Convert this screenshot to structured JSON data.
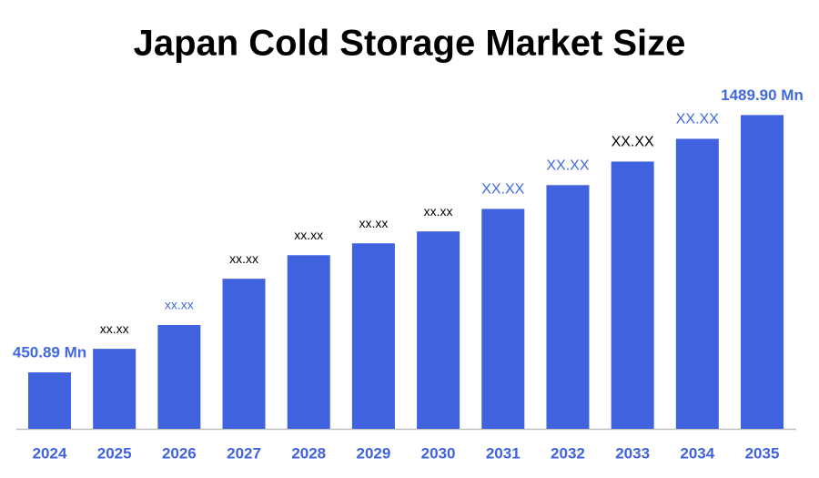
{
  "chart_data": {
    "type": "bar",
    "title": "Japan Cold Storage Market Size",
    "categories": [
      "2024",
      "2025",
      "2026",
      "2027",
      "2028",
      "2029",
      "2030",
      "2031",
      "2032",
      "2033",
      "2034",
      "2035"
    ],
    "values": [
      450.89,
      546,
      642,
      829,
      924,
      972,
      1020,
      1111,
      1207,
      1302,
      1394,
      1489.9
    ],
    "value_labels": [
      "450.89 Mn",
      "xx.xx",
      "xx.xx",
      "xx.xx",
      "xx.xx",
      "xx.xx",
      "xx.xx",
      "XX.XX",
      "XX.XX",
      "XX.XX",
      "XX.XX",
      "1489.90 Mn"
    ],
    "value_label_colors": [
      "#4169e1",
      "#000000",
      "#4169e1",
      "#000000",
      "#000000",
      "#000000",
      "#000000",
      "#4169e1",
      "#4169e1",
      "#000000",
      "#4169e1",
      "#4169e1"
    ],
    "color": "#4062de",
    "category_label_color": "#4062de",
    "ylim": [
      223,
      1550
    ]
  }
}
